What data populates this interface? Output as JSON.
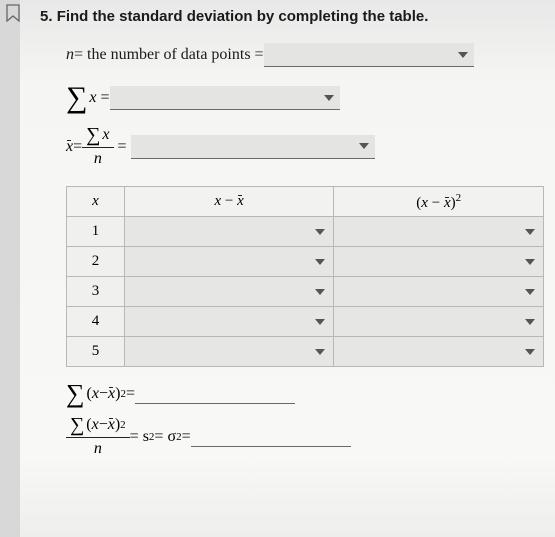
{
  "question": {
    "number": "5.",
    "text": "Find the standard deviation by completing the table."
  },
  "lines": {
    "n_label_pre": "n",
    "n_label_post": " = the number of data points = ",
    "sum_x_label": "x",
    "sum_x_eq": " = ",
    "mean_xbar": "x",
    "mean_eq": " = ",
    "sum_top_x": "x",
    "mean_denom": "n",
    "mean_eq2": " = "
  },
  "table": {
    "headers": {
      "x": "x",
      "diff_left": "x",
      "diff_mid": " − ",
      "diff_right": "x",
      "sq_exp": "2"
    },
    "rows": [
      "1",
      "2",
      "3",
      "4",
      "5"
    ]
  },
  "sums": {
    "sumsq_left": "(x − ",
    "sumsq_right": ")",
    "exp2": "2",
    "eq": " = ",
    "denom": "n",
    "var_eq": " = s",
    "var_eq2": " = σ",
    "var_eq3": " = "
  },
  "widths": {
    "dd_n": 210,
    "dd_sumx": 230,
    "dd_mean": 244,
    "under_sumsq": 160,
    "under_var": 160
  },
  "colors": {
    "page_bg": "#f5f5f3",
    "dd_bg": "#e4e4e2",
    "border": "#b8b8b6",
    "underline": "#6a6a6a",
    "text": "#1a1a1a"
  }
}
